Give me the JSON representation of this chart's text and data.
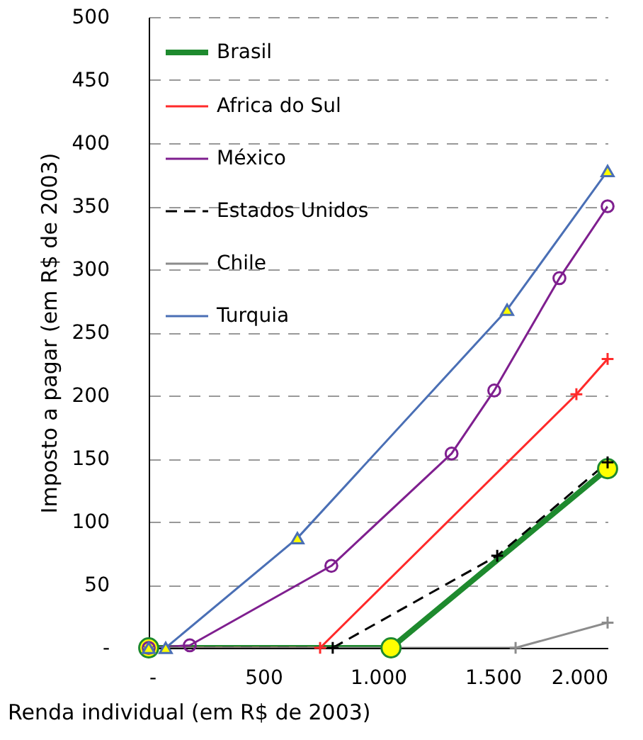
{
  "chart_data": {
    "type": "line",
    "xlabel": "Renda individual (em R$ de 2003)",
    "ylabel": "Imposto a pagar (em R$ de 2003)",
    "xlim": [
      0,
      2000
    ],
    "ylim": [
      0,
      500
    ],
    "xticks": [
      {
        "value": 0,
        "label": "-"
      },
      500,
      {
        "value": 1000,
        "label": "1.000"
      },
      {
        "value": 1500,
        "label": "1.500"
      },
      {
        "value": 2000,
        "label": "2.000"
      }
    ],
    "yticks": [
      {
        "value": 0,
        "label": "-"
      },
      50,
      100,
      150,
      200,
      250,
      300,
      350,
      400,
      450,
      500
    ],
    "grid": "y",
    "legend": "top left",
    "series": [
      {
        "name": "Brasil",
        "color": "#1e8a2e",
        "x": [
          0,
          1056,
          2000
        ],
        "values": [
          0,
          0,
          142
        ],
        "marker": "circle",
        "line_style": "solid"
      },
      {
        "name": "Africa do Sul",
        "color": "#ff2a2a",
        "x": [
          0,
          747,
          1864,
          2000
        ],
        "values": [
          0,
          0,
          201,
          229
        ],
        "marker": "cross",
        "line_style": "solid"
      },
      {
        "name": "México",
        "color": "#7f1f8f",
        "x": [
          0,
          179,
          796,
          1320,
          1506,
          1790,
          2000
        ],
        "values": [
          0,
          2,
          65,
          154,
          204,
          293,
          350
        ],
        "marker": "circle",
        "line_style": "solid"
      },
      {
        "name": "Estados Unidos",
        "color": "#000000",
        "x": [
          0,
          802,
          1519,
          2000
        ],
        "values": [
          0,
          0,
          73,
          147
        ],
        "marker": "cross",
        "line_style": "dashed"
      },
      {
        "name": "Chile",
        "color": "#8c8c8c",
        "x": [
          0,
          1599,
          2000
        ],
        "values": [
          0,
          0,
          20
        ],
        "marker": "cross",
        "line_style": "solid"
      },
      {
        "name": "Turquia",
        "color": "#4a6fb5",
        "x": [
          0,
          74,
          648,
          1562,
          2000
        ],
        "values": [
          0,
          0,
          87,
          268,
          378
        ],
        "marker": "triangle",
        "line_style": "solid"
      }
    ]
  }
}
